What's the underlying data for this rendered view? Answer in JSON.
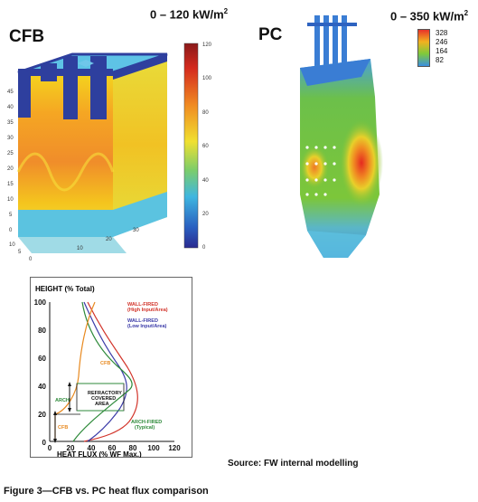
{
  "cfb": {
    "label": "CFB",
    "range": "0 – 120 kW/m",
    "range_sup": "2",
    "scale_ticks": [
      "120",
      "100",
      "80",
      "60",
      "40",
      "20",
      "0"
    ],
    "axis_y_ticks": [
      "45",
      "40",
      "35",
      "30",
      "25",
      "20",
      "15",
      "10",
      "5",
      "0"
    ],
    "axis_x_ticks": [
      "10",
      "20",
      "30"
    ],
    "axis_z_ticks": [
      "10",
      "5",
      "0"
    ]
  },
  "pc": {
    "label": "PC",
    "range": "0 – 350 kW/m",
    "range_sup": "2",
    "legend": [
      "328",
      "246",
      "164",
      "82"
    ],
    "legend_colors": [
      "#e8312a",
      "#f2b21f",
      "#7fca3a",
      "#3a8fe0"
    ]
  },
  "chart": {
    "y_title": "HEIGHT (% Total)",
    "x_title": "HEAT FLUX (% WF Max.)",
    "y_ticks": [
      "100",
      "80",
      "60",
      "40",
      "20",
      "0"
    ],
    "x_ticks": [
      "0",
      "20",
      "40",
      "60",
      "80",
      "100",
      "120"
    ],
    "labels": {
      "wall_high": "WALL-FIRED",
      "wall_high_sub": "(High Input/Area)",
      "wall_low": "WALL-FIRED",
      "wall_low_sub": "(Low Input/Area)",
      "cfb_upper": "CFB",
      "cfb_lower": "CFB",
      "arch": "ARCH",
      "refractory_1": "REFRACTORY",
      "refractory_2": "COVERED",
      "refractory_3": "AREA",
      "arch_fired": "ARCH-FIRED",
      "arch_fired_sub": "(Typical)"
    },
    "colors": {
      "wall_high": "#d2342a",
      "wall_low": "#3b3ba8",
      "cfb": "#e8891f",
      "arch": "#2e8a3a"
    }
  },
  "source": "Source: FW internal modelling",
  "caption": "Figure 3—CFB vs. PC heat flux comparison"
}
